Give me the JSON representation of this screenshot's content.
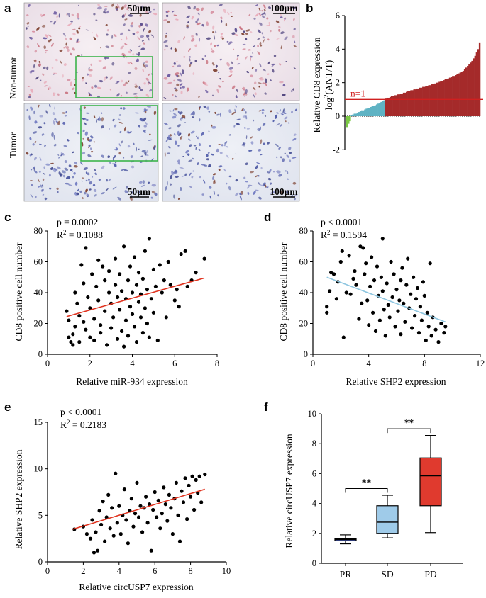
{
  "panels": {
    "a": {
      "label": "a",
      "row_labels": [
        "Non-tumor",
        "Tumor"
      ],
      "scale_bars": [
        "50μm",
        "100μm",
        "50μm",
        "100μm"
      ]
    },
    "b": {
      "label": "b"
    },
    "c": {
      "label": "c"
    },
    "d": {
      "label": "d"
    },
    "e": {
      "label": "e"
    },
    "f": {
      "label": "f"
    }
  },
  "colors": {
    "red_bar": "#a52a2a",
    "teal_bar": "#5fb3c4",
    "green_bar": "#7ac943",
    "fit_red": "#e0321e",
    "fit_blue": "#8ec6e0",
    "box_pr": "#3a4e9c",
    "box_sd": "#9fcbe9",
    "box_pd": "#e03a2e",
    "frame_green": "#3cb44b"
  },
  "chart_data": [
    {
      "panel": "b",
      "type": "bar",
      "ylabel_line1": "Relative CD8 expression",
      "ylabel_line2_base": "log",
      "ylabel_line2_sup": "2",
      "ylabel_line2_rest": "(ANT/T)",
      "ylim": [
        -2,
        6
      ],
      "ticks": [
        "-2",
        "0",
        "2",
        "4",
        "6"
      ],
      "tick_values": [
        -2,
        0,
        2,
        4,
        6
      ],
      "threshold": 1,
      "threshold_label": "n=1",
      "values": [
        -0.65,
        -0.45,
        -0.3,
        0.05,
        0.1,
        0.15,
        0.15,
        0.2,
        0.25,
        0.3,
        0.35,
        0.35,
        0.4,
        0.45,
        0.5,
        0.5,
        0.55,
        0.6,
        0.6,
        0.65,
        0.7,
        0.75,
        0.8,
        0.85,
        0.9,
        0.95,
        1.05,
        1.1,
        1.1,
        1.15,
        1.2,
        1.2,
        1.25,
        1.25,
        1.3,
        1.3,
        1.35,
        1.35,
        1.4,
        1.4,
        1.45,
        1.5,
        1.5,
        1.55,
        1.55,
        1.6,
        1.6,
        1.65,
        1.65,
        1.7,
        1.7,
        1.75,
        1.75,
        1.8,
        1.8,
        1.85,
        1.85,
        1.9,
        1.9,
        1.95,
        2.0,
        2.0,
        2.05,
        2.1,
        2.1,
        2.15,
        2.2,
        2.2,
        2.25,
        2.3,
        2.35,
        2.4,
        2.4,
        2.45,
        2.5,
        2.55,
        2.6,
        2.65,
        2.7,
        2.8,
        2.9,
        3.0,
        3.1,
        3.2,
        3.3,
        3.45,
        3.6,
        3.8,
        4.0,
        4.4
      ]
    },
    {
      "panel": "c",
      "type": "scatter",
      "stat_p": "p = 0.0002",
      "stat_r_base": "R",
      "stat_r_sup": "2",
      "stat_r_value": " = 0.1088",
      "xlabel": "Relative miR-934 expression",
      "ylabel": "CD8 positive cell number",
      "xlim": [
        0,
        8
      ],
      "ylim": [
        0,
        80
      ],
      "xticks": [
        "0",
        "2",
        "4",
        "6",
        "8"
      ],
      "xtick_values": [
        0,
        2,
        4,
        6,
        8
      ],
      "yticks": [
        "0",
        "20",
        "40",
        "60",
        "80"
      ],
      "ytick_values": [
        0,
        20,
        40,
        60,
        80
      ],
      "fit": {
        "x1": 0.9,
        "y1": 24.5,
        "x2": 7.4,
        "y2": 49.5
      },
      "points": [
        [
          0.9,
          28
        ],
        [
          1.0,
          22
        ],
        [
          1.0,
          11
        ],
        [
          1.1,
          8
        ],
        [
          1.2,
          6
        ],
        [
          1.2,
          13
        ],
        [
          1.3,
          18
        ],
        [
          1.3,
          40
        ],
        [
          1.4,
          33
        ],
        [
          1.5,
          25
        ],
        [
          1.5,
          8
        ],
        [
          1.6,
          58
        ],
        [
          1.7,
          46
        ],
        [
          1.7,
          21
        ],
        [
          1.8,
          16
        ],
        [
          1.8,
          69
        ],
        [
          1.9,
          37
        ],
        [
          2.0,
          11
        ],
        [
          2.0,
          30
        ],
        [
          2.1,
          52
        ],
        [
          2.2,
          23
        ],
        [
          2.2,
          9
        ],
        [
          2.3,
          44
        ],
        [
          2.4,
          35
        ],
        [
          2.4,
          61
        ],
        [
          2.5,
          19
        ],
        [
          2.5,
          14
        ],
        [
          2.6,
          57
        ],
        [
          2.7,
          48
        ],
        [
          2.7,
          28
        ],
        [
          2.8,
          6
        ],
        [
          2.9,
          40
        ],
        [
          2.9,
          54
        ],
        [
          3.0,
          33
        ],
        [
          3.0,
          17
        ],
        [
          3.1,
          24
        ],
        [
          3.2,
          45
        ],
        [
          3.2,
          62
        ],
        [
          3.3,
          10
        ],
        [
          3.3,
          37
        ],
        [
          3.4,
          29
        ],
        [
          3.4,
          52
        ],
        [
          3.5,
          15
        ],
        [
          3.5,
          41
        ],
        [
          3.6,
          5
        ],
        [
          3.6,
          70
        ],
        [
          3.7,
          36
        ],
        [
          3.7,
          22
        ],
        [
          3.8,
          48
        ],
        [
          3.8,
          12
        ],
        [
          3.9,
          57
        ],
        [
          3.9,
          31
        ],
        [
          4.0,
          40
        ],
        [
          4.0,
          26
        ],
        [
          4.1,
          63
        ],
        [
          4.1,
          18
        ],
        [
          4.2,
          45
        ],
        [
          4.2,
          8
        ],
        [
          4.3,
          34
        ],
        [
          4.3,
          53
        ],
        [
          4.4,
          24
        ],
        [
          4.4,
          39
        ],
        [
          4.5,
          14
        ],
        [
          4.5,
          49
        ],
        [
          4.6,
          67
        ],
        [
          4.6,
          30
        ],
        [
          4.7,
          42
        ],
        [
          4.7,
          20
        ],
        [
          4.8,
          75
        ],
        [
          4.8,
          11
        ],
        [
          4.9,
          36
        ],
        [
          5.0,
          55
        ],
        [
          5.0,
          27
        ],
        [
          5.1,
          44
        ],
        [
          5.2,
          9
        ],
        [
          5.3,
          58
        ],
        [
          5.4,
          40
        ],
        [
          5.5,
          48
        ],
        [
          5.6,
          24
        ],
        [
          5.7,
          60
        ],
        [
          5.8,
          45
        ],
        [
          6.0,
          35
        ],
        [
          6.1,
          42
        ],
        [
          6.2,
          31
        ],
        [
          6.3,
          65
        ],
        [
          6.5,
          67
        ],
        [
          6.6,
          44
        ],
        [
          6.8,
          48
        ],
        [
          7.0,
          53
        ],
        [
          7.4,
          62
        ]
      ]
    },
    {
      "panel": "d",
      "type": "scatter",
      "stat_p": "p < 0.0001",
      "stat_r_base": "R",
      "stat_r_sup": "2",
      "stat_r_value": " = 0.1594",
      "xlabel": "Relative SHP2 expression",
      "ylabel": "CD8 positive cell number",
      "xlim": [
        0,
        12
      ],
      "ylim": [
        0,
        80
      ],
      "xticks": [
        "0",
        "4",
        "8",
        "12"
      ],
      "xtick_values": [
        0,
        4,
        8,
        12
      ],
      "yticks": [
        "0",
        "20",
        "40",
        "60",
        "80"
      ],
      "ytick_values": [
        0,
        20,
        40,
        60,
        80
      ],
      "fit": {
        "x1": 1.0,
        "y1": 50,
        "x2": 9.5,
        "y2": 21
      },
      "points": [
        [
          1.0,
          31
        ],
        [
          1.0,
          27
        ],
        [
          1.2,
          41
        ],
        [
          1.3,
          53
        ],
        [
          1.5,
          52
        ],
        [
          1.7,
          36
        ],
        [
          1.8,
          47
        ],
        [
          2.0,
          60
        ],
        [
          2.1,
          67
        ],
        [
          2.2,
          11
        ],
        [
          2.4,
          40
        ],
        [
          2.6,
          64
        ],
        [
          2.7,
          39
        ],
        [
          2.9,
          49
        ],
        [
          3.0,
          54
        ],
        [
          3.1,
          45
        ],
        [
          3.3,
          23
        ],
        [
          3.4,
          70
        ],
        [
          3.5,
          33
        ],
        [
          3.6,
          69
        ],
        [
          3.7,
          52
        ],
        [
          3.8,
          59
        ],
        [
          3.9,
          35
        ],
        [
          4.0,
          19
        ],
        [
          4.1,
          44
        ],
        [
          4.2,
          63
        ],
        [
          4.3,
          27
        ],
        [
          4.4,
          48
        ],
        [
          4.5,
          15
        ],
        [
          4.6,
          57
        ],
        [
          4.7,
          38
        ],
        [
          4.8,
          22
        ],
        [
          4.9,
          50
        ],
        [
          5.0,
          75
        ],
        [
          5.0,
          41
        ],
        [
          5.1,
          29
        ],
        [
          5.2,
          12
        ],
        [
          5.3,
          46
        ],
        [
          5.4,
          32
        ],
        [
          5.5,
          24
        ],
        [
          5.6,
          60
        ],
        [
          5.7,
          37
        ],
        [
          5.8,
          52
        ],
        [
          5.9,
          18
        ],
        [
          6.0,
          42
        ],
        [
          6.1,
          28
        ],
        [
          6.2,
          35
        ],
        [
          6.3,
          48
        ],
        [
          6.3,
          13
        ],
        [
          6.4,
          56
        ],
        [
          6.5,
          33
        ],
        [
          6.6,
          21
        ],
        [
          6.7,
          45
        ],
        [
          6.8,
          62
        ],
        [
          6.9,
          30
        ],
        [
          7.0,
          39
        ],
        [
          7.1,
          17
        ],
        [
          7.2,
          50
        ],
        [
          7.3,
          25
        ],
        [
          7.4,
          36
        ],
        [
          7.5,
          43
        ],
        [
          7.6,
          14
        ],
        [
          7.7,
          31
        ],
        [
          7.8,
          22
        ],
        [
          7.9,
          47
        ],
        [
          8.0,
          38
        ],
        [
          8.1,
          9
        ],
        [
          8.2,
          27
        ],
        [
          8.3,
          18
        ],
        [
          8.4,
          59
        ],
        [
          8.5,
          12
        ],
        [
          8.6,
          24
        ],
        [
          8.8,
          16
        ],
        [
          9.0,
          8
        ],
        [
          9.2,
          20
        ],
        [
          9.4,
          14
        ],
        [
          9.5,
          18
        ]
      ]
    },
    {
      "panel": "e",
      "type": "scatter",
      "stat_p": "p < 0.0001",
      "stat_r_base": "R",
      "stat_r_sup": "2",
      "stat_r_value": " = 0.2183",
      "xlabel": "Relative circUSP7 expression",
      "ylabel": "Relative SHP2 expression",
      "xlim": [
        0,
        10
      ],
      "ylim": [
        0,
        15
      ],
      "xticks": [
        "0",
        "2",
        "4",
        "6",
        "8",
        "10"
      ],
      "xtick_values": [
        0,
        2,
        4,
        6,
        8,
        10
      ],
      "yticks": [
        "0",
        "5",
        "10",
        "15"
      ],
      "ytick_values": [
        0,
        5,
        10,
        15
      ],
      "fit": {
        "x1": 1.4,
        "y1": 3.5,
        "x2": 8.8,
        "y2": 7.8
      },
      "points": [
        [
          1.5,
          3.5
        ],
        [
          2.0,
          3.8
        ],
        [
          2.2,
          3.0
        ],
        [
          2.4,
          2.5
        ],
        [
          2.5,
          4.5
        ],
        [
          2.6,
          1.0
        ],
        [
          2.7,
          3.2
        ],
        [
          2.8,
          1.2
        ],
        [
          2.9,
          5.5
        ],
        [
          3.0,
          4.0
        ],
        [
          3.1,
          6.5
        ],
        [
          3.2,
          2.2
        ],
        [
          3.3,
          4.8
        ],
        [
          3.4,
          7.2
        ],
        [
          3.5,
          3.6
        ],
        [
          3.6,
          5.8
        ],
        [
          3.7,
          2.8
        ],
        [
          3.8,
          9.5
        ],
        [
          3.9,
          4.2
        ],
        [
          4.0,
          6.0
        ],
        [
          4.1,
          3.0
        ],
        [
          4.2,
          5.0
        ],
        [
          4.3,
          7.8
        ],
        [
          4.4,
          4.5
        ],
        [
          4.5,
          2.0
        ],
        [
          4.6,
          5.5
        ],
        [
          4.7,
          6.8
        ],
        [
          4.8,
          3.8
        ],
        [
          4.9,
          5.2
        ],
        [
          5.0,
          8.5
        ],
        [
          5.1,
          4.8
        ],
        [
          5.2,
          6.0
        ],
        [
          5.3,
          3.2
        ],
        [
          5.4,
          5.8
        ],
        [
          5.5,
          7.0
        ],
        [
          5.6,
          4.2
        ],
        [
          5.7,
          6.2
        ],
        [
          5.8,
          1.2
        ],
        [
          5.9,
          5.6
        ],
        [
          6.0,
          7.5
        ],
        [
          6.1,
          4.8
        ],
        [
          6.2,
          6.6
        ],
        [
          6.3,
          3.6
        ],
        [
          6.4,
          5.2
        ],
        [
          6.5,
          8.0
        ],
        [
          6.6,
          6.2
        ],
        [
          6.7,
          4.4
        ],
        [
          6.8,
          7.2
        ],
        [
          6.9,
          5.8
        ],
        [
          7.0,
          3.0
        ],
        [
          7.1,
          6.8
        ],
        [
          7.2,
          8.5
        ],
        [
          7.3,
          5.0
        ],
        [
          7.4,
          2.2
        ],
        [
          7.5,
          7.6
        ],
        [
          7.6,
          6.4
        ],
        [
          7.7,
          9.0
        ],
        [
          7.8,
          4.6
        ],
        [
          7.9,
          8.2
        ],
        [
          8.0,
          7.0
        ],
        [
          8.1,
          9.2
        ],
        [
          8.2,
          5.6
        ],
        [
          8.3,
          8.8
        ],
        [
          8.4,
          7.4
        ],
        [
          8.5,
          9.2
        ],
        [
          8.6,
          6.4
        ],
        [
          8.8,
          9.4
        ]
      ]
    },
    {
      "panel": "f",
      "type": "box",
      "ylabel": "Relative circUSP7 expression",
      "ylim": [
        0,
        10
      ],
      "yticks": [
        "0",
        "2",
        "4",
        "6",
        "8",
        "10"
      ],
      "ytick_values": [
        0,
        2,
        4,
        6,
        8,
        10
      ],
      "categories": [
        "PR",
        "SD",
        "PD"
      ],
      "boxes": [
        {
          "name": "PR",
          "min": 1.3,
          "q1": 1.5,
          "median": 1.6,
          "q3": 1.65,
          "max": 1.9
        },
        {
          "name": "SD",
          "min": 1.7,
          "q1": 2.0,
          "median": 2.75,
          "q3": 3.85,
          "max": 4.55
        },
        {
          "name": "PD",
          "min": 2.05,
          "q1": 3.85,
          "median": 5.85,
          "q3": 7.05,
          "max": 8.55
        }
      ],
      "significance": [
        {
          "from": "PR",
          "to": "SD",
          "label": "**",
          "level": 5.0
        },
        {
          "from": "SD",
          "to": "PD",
          "label": "**",
          "level": 9.0
        }
      ]
    }
  ]
}
